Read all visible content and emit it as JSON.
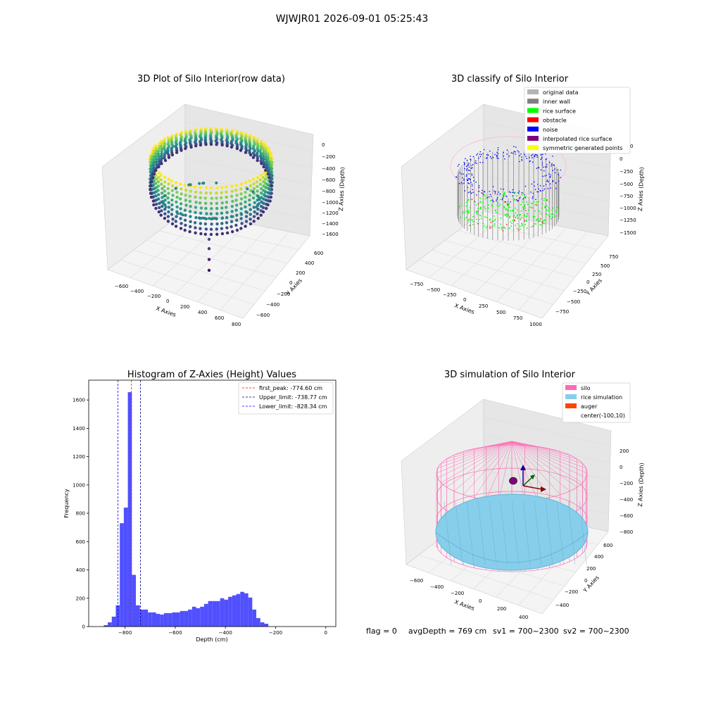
{
  "suptitle": "WJWJR01 2026-09-01 05:25:43",
  "footer": {
    "flag": "flag = 0",
    "avg": "avgDepth = 769 cm",
    "sv1": "sv1 = 700~2300",
    "sv2": "sv2 = 700~2300"
  },
  "colors": {
    "histogram": "#5050ff",
    "pane": "#f2f2f2",
    "grid": "#dcdcdc"
  },
  "chart_data": [
    {
      "type": "scatter",
      "projection": "3d",
      "title": "3D Plot of Silo Interior(row data)",
      "xlabel": "X Axies",
      "ylabel": "Y Axies",
      "zlabel": "Z Axies (Depth)",
      "x_ticks": [
        "−600",
        "−400",
        "−200",
        "0",
        "200",
        "400",
        "600",
        "800"
      ],
      "y_ticks": [
        "−600",
        "−400",
        "−200",
        "0",
        "200",
        "400",
        "600"
      ],
      "z_ticks": [
        "0",
        "−200",
        "−400",
        "−600",
        "−800",
        "−1000",
        "−1200",
        "−1400",
        "−1600"
      ],
      "colormap": "viridis",
      "outlier_points": [
        {
          "x": 0,
          "y": -100,
          "z": -1450
        },
        {
          "x": 0,
          "y": -100,
          "z": -1510
        },
        {
          "x": 0,
          "y": -100,
          "z": -1580
        },
        {
          "x": 0,
          "y": -100,
          "z": -1650
        }
      ]
    },
    {
      "type": "scatter",
      "projection": "3d",
      "title": "3D classify of Silo Interior",
      "xlabel": "X Axies",
      "ylabel": "Y Axies",
      "zlabel": "Z Axies (Depth)",
      "x_ticks": [
        "−750",
        "−500",
        "−250",
        "0",
        "250",
        "500",
        "750",
        "1000"
      ],
      "y_ticks": [
        "−750",
        "−500",
        "−250",
        "0",
        "250",
        "500",
        "750"
      ],
      "z_ticks": [
        "0",
        "−250",
        "−500",
        "−750",
        "−1000",
        "−1250",
        "−1500"
      ],
      "z_extra_tick": "0",
      "legend": [
        {
          "label": "original data",
          "color": "#b4b4b4"
        },
        {
          "label": "inner wall",
          "color": "#808080"
        },
        {
          "label": "rice surface",
          "color": "#00ff00"
        },
        {
          "label": "obstacle",
          "color": "#ff0000"
        },
        {
          "label": "noise",
          "color": "#0000ff"
        },
        {
          "label": "interpolated rice surface",
          "color": "#800080"
        },
        {
          "label": "symmetric generated points",
          "color": "#ffff00"
        }
      ],
      "legend_loc": "upper right"
    },
    {
      "type": "bar",
      "title": "Histogram of Z-Axies (Height) Values",
      "xlabel": "Depth (cm)",
      "ylabel": "Frequency",
      "xlim": [
        -945,
        40
      ],
      "ylim": [
        0,
        1740
      ],
      "x_ticks": [
        -800,
        -600,
        -400,
        -200,
        0
      ],
      "y_ticks": [
        0,
        200,
        400,
        600,
        800,
        1000,
        1200,
        1400,
        1600
      ],
      "bin_start": -885,
      "bin_width": 16,
      "values": [
        10,
        30,
        70,
        150,
        730,
        840,
        1655,
        365,
        150,
        120,
        120,
        100,
        100,
        90,
        85,
        95,
        95,
        100,
        100,
        110,
        110,
        120,
        140,
        130,
        140,
        160,
        180,
        180,
        180,
        200,
        190,
        210,
        220,
        230,
        245,
        235,
        205,
        120,
        60,
        30,
        20
      ],
      "lines": [
        {
          "label": "first_peak: -774.60 cm",
          "x": -774.6,
          "color": "#ff0000"
        },
        {
          "label": "Upper_limit: -738.77 cm",
          "x": -738.77,
          "color": "#000080"
        },
        {
          "label": "Lower_limit: -828.34 cm",
          "x": -828.34,
          "color": "#0000ff"
        }
      ],
      "legend_loc": "upper right"
    },
    {
      "type": "surface",
      "projection": "3d",
      "title": "3D simulation of Silo Interior",
      "xlabel": "X Axies",
      "ylabel": "Y Axies",
      "zlabel": "Z Axies (Depth)",
      "x_ticks": [
        "−600",
        "−400",
        "−200",
        "0",
        "200",
        "400"
      ],
      "y_ticks": [
        "−400",
        "−200",
        "0",
        "200",
        "400",
        "600"
      ],
      "z_ticks": [
        "200",
        "0",
        "−200",
        "−400",
        "−600",
        "−800"
      ],
      "legend": [
        {
          "label": "silo",
          "color": "#ff69b4"
        },
        {
          "label": "rice simulation",
          "color": "#87ceeb"
        },
        {
          "label": "auger",
          "color": "#ff4500"
        },
        {
          "label": "center(-100,10)",
          "color": ""
        }
      ],
      "legend_loc": "upper right"
    }
  ]
}
